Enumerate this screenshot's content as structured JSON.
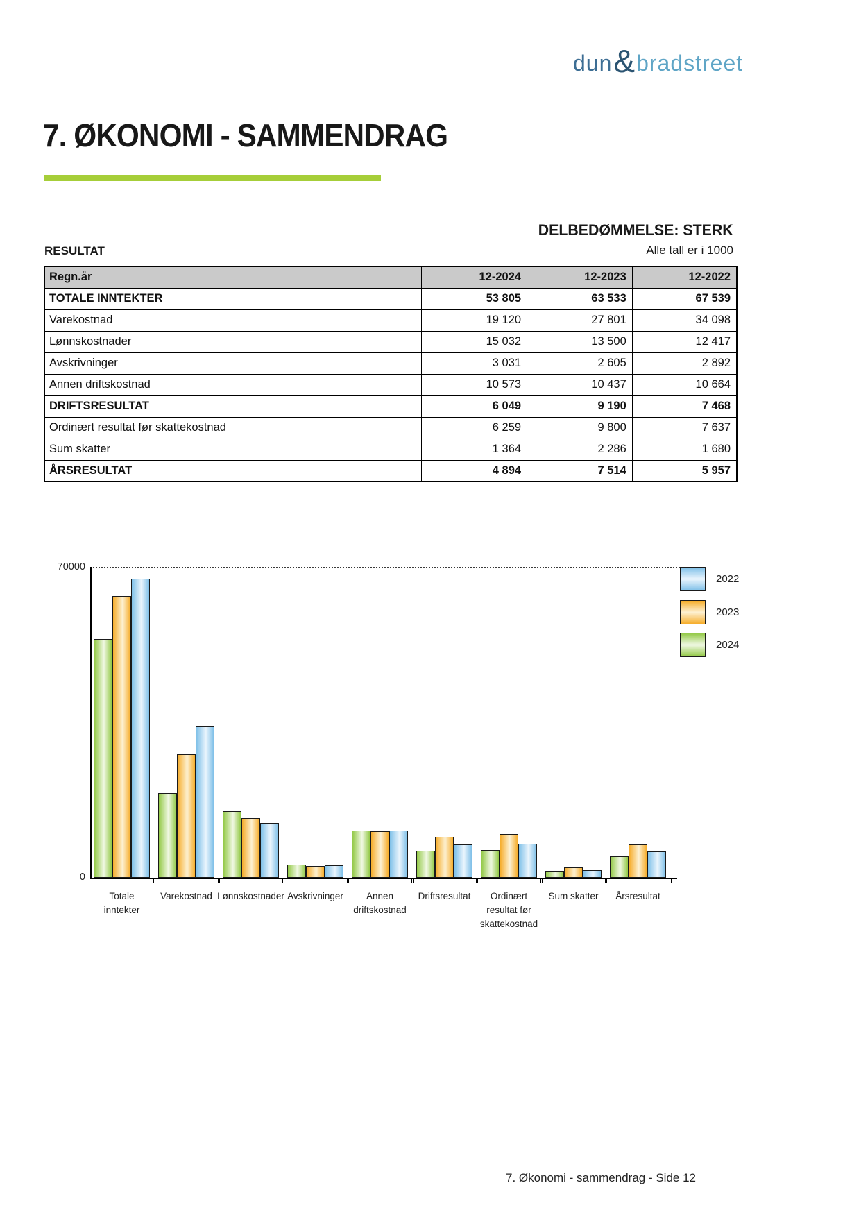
{
  "logo": {
    "part1": "dun",
    "amp": "&",
    "part2": "bradstreet"
  },
  "page": {
    "title": "7. ØKONOMI - SAMMENDRAG",
    "footer": "7. Økonomi - sammendrag - Side 12"
  },
  "assessment": {
    "label": "DELBEDØMMELSE: STERK"
  },
  "table": {
    "section_label": "RESULTAT",
    "units_note": "Alle tall er i 1000",
    "columns": [
      "Regn.år",
      "12-2024",
      "12-2023",
      "12-2022"
    ],
    "rows": [
      {
        "label": "TOTALE INNTEKTER",
        "values": [
          "53 805",
          "63 533",
          "67 539"
        ],
        "bold": true
      },
      {
        "label": "Varekostnad",
        "values": [
          "19 120",
          "27 801",
          "34 098"
        ],
        "bold": false
      },
      {
        "label": "Lønnskostnader",
        "values": [
          "15 032",
          "13 500",
          "12 417"
        ],
        "bold": false
      },
      {
        "label": "Avskrivninger",
        "values": [
          "3 031",
          "2 605",
          "2 892"
        ],
        "bold": false
      },
      {
        "label": "Annen driftskostnad",
        "values": [
          "10 573",
          "10 437",
          "10 664"
        ],
        "bold": false
      },
      {
        "label": "DRIFTSRESULTAT",
        "values": [
          "6 049",
          "9 190",
          "7 468"
        ],
        "bold": true
      },
      {
        "label": "Ordinært resultat før skattekostnad",
        "values": [
          "6 259",
          "9 800",
          "7 637"
        ],
        "bold": false
      },
      {
        "label": "Sum skatter",
        "values": [
          "1 364",
          "2 286",
          "1 680"
        ],
        "bold": false
      },
      {
        "label": "ÅRSRESULTAT",
        "values": [
          "4 894",
          "7 514",
          "5 957"
        ],
        "bold": true
      }
    ]
  },
  "chart_data": {
    "type": "bar",
    "title": "",
    "xlabel": "",
    "ylabel": "",
    "categories": [
      "Totale\ninntekter",
      "Varekostnad",
      "Lønnskostnader",
      "Avskrivninger",
      "Annen\ndriftskostnad",
      "Driftsresultat",
      "Ordinært\nresultat før\nskattekostnad",
      "Sum skatter",
      "Årsresultat"
    ],
    "series": [
      {
        "name": "2022",
        "values": [
          67539,
          34098,
          12417,
          2892,
          10664,
          7468,
          7637,
          1680,
          5957
        ]
      },
      {
        "name": "2023",
        "values": [
          63533,
          27801,
          13500,
          2605,
          10437,
          9190,
          9800,
          2286,
          7514
        ]
      },
      {
        "name": "2024",
        "values": [
          53805,
          19120,
          15032,
          3031,
          10573,
          6049,
          6259,
          1364,
          4894
        ]
      }
    ],
    "bar_order": [
      "2024",
      "2023",
      "2022"
    ],
    "ylim": [
      0,
      70000
    ],
    "ytick_labels": [
      "0",
      "70000"
    ],
    "grid": "single dotted gridline at 70000",
    "legend_position": "top-right",
    "colors": {
      "2022": {
        "edge": "#7fc0e8",
        "center": "#eaf5fd"
      },
      "2023": {
        "edge": "#f6ad2b",
        "center": "#fdf1d2"
      },
      "2024": {
        "edge": "#93c947",
        "center": "#f0f8e3"
      }
    },
    "bar_border": "#1a1a1a"
  }
}
